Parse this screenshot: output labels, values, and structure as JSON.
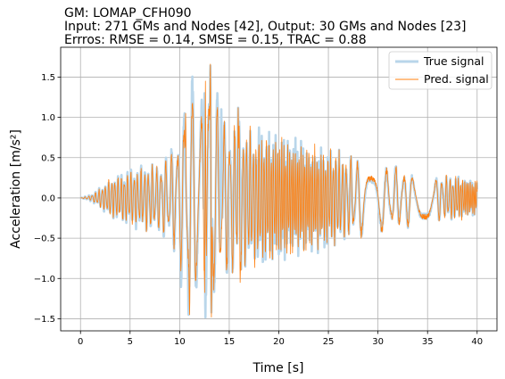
{
  "chart_data": {
    "type": "line",
    "title_lines": [
      "GM: LOMAP_CFH090",
      "Input: 271 GMs and Nodes [42], Output: 30 GMs and Nodes [23]",
      "Errros: RMSE = 0.14, SMSE = 0.15, TRAC = 0.88"
    ],
    "xlabel": "Time [s]",
    "ylabel": "Acceleration [m/s²]",
    "xlim": [
      -2,
      42
    ],
    "ylim": [
      -1.65,
      1.87
    ],
    "xticks": [
      0,
      5,
      10,
      15,
      20,
      25,
      30,
      35,
      40
    ],
    "xtick_labels": [
      "0",
      "5",
      "10",
      "15",
      "20",
      "25",
      "30",
      "35",
      "40"
    ],
    "yticks": [
      -1.5,
      -1.0,
      -0.5,
      0.0,
      0.5,
      1.0,
      1.5
    ],
    "ytick_labels": [
      "−1.5",
      "−1.0",
      "−0.5",
      "0.0",
      "0.5",
      "1.0",
      "1.5"
    ],
    "grid": true,
    "legend_position": "top-right",
    "series": [
      {
        "name": "True signal",
        "color": "#b9d6ea",
        "envelope": [
          [
            0,
            0.0
          ],
          [
            1,
            0.04
          ],
          [
            2,
            0.12
          ],
          [
            3,
            0.22
          ],
          [
            4,
            0.28
          ],
          [
            5,
            0.34
          ],
          [
            6,
            0.38
          ],
          [
            7,
            0.4
          ],
          [
            8,
            0.43
          ],
          [
            9,
            0.55
          ],
          [
            10,
            0.9
          ],
          [
            11,
            1.45
          ],
          [
            12,
            1.35
          ],
          [
            13,
            1.5
          ],
          [
            14,
            1.1
          ],
          [
            15,
            0.95
          ],
          [
            16,
            0.95
          ],
          [
            17,
            0.82
          ],
          [
            18,
            0.78
          ],
          [
            19,
            0.75
          ],
          [
            20,
            0.74
          ],
          [
            21,
            0.7
          ],
          [
            22,
            0.66
          ],
          [
            23,
            0.62
          ],
          [
            24,
            0.6
          ],
          [
            25,
            0.57
          ],
          [
            26,
            0.53
          ],
          [
            27,
            0.5
          ],
          [
            28,
            0.46
          ],
          [
            29,
            0.43
          ],
          [
            30,
            0.4
          ],
          [
            31,
            0.38
          ],
          [
            32,
            0.36
          ],
          [
            33,
            0.34
          ],
          [
            34,
            0.31
          ],
          [
            35,
            0.3
          ],
          [
            36,
            0.28
          ],
          [
            37,
            0.26
          ],
          [
            38,
            0.25
          ],
          [
            39,
            0.23
          ],
          [
            40,
            0.21
          ]
        ]
      },
      {
        "name": "Pred. signal",
        "color": "#ff7f0e",
        "envelope": [
          [
            0,
            0.0
          ],
          [
            1,
            0.03
          ],
          [
            2,
            0.12
          ],
          [
            3,
            0.24
          ],
          [
            4,
            0.28
          ],
          [
            5,
            0.33
          ],
          [
            6,
            0.36
          ],
          [
            7,
            0.4
          ],
          [
            8,
            0.42
          ],
          [
            9,
            0.5
          ],
          [
            10,
            0.8
          ],
          [
            11,
            1.2
          ],
          [
            12,
            1.25
          ],
          [
            13,
            1.55
          ],
          [
            14,
            1.05
          ],
          [
            15,
            0.9
          ],
          [
            16,
            0.92
          ],
          [
            17,
            0.8
          ],
          [
            18,
            0.77
          ],
          [
            19,
            0.76
          ],
          [
            20,
            0.74
          ],
          [
            21,
            0.69
          ],
          [
            22,
            0.66
          ],
          [
            23,
            0.62
          ],
          [
            24,
            0.6
          ],
          [
            25,
            0.57
          ],
          [
            26,
            0.54
          ],
          [
            27,
            0.5
          ],
          [
            28,
            0.46
          ],
          [
            29,
            0.43
          ],
          [
            30,
            0.41
          ],
          [
            31,
            0.39
          ],
          [
            32,
            0.37
          ],
          [
            33,
            0.34
          ],
          [
            34,
            0.32
          ],
          [
            35,
            0.3
          ],
          [
            36,
            0.28
          ],
          [
            37,
            0.27
          ],
          [
            38,
            0.26
          ],
          [
            39,
            0.24
          ],
          [
            40,
            0.21
          ]
        ],
        "peaks": [
          {
            "t": 10.6,
            "value": 1.05
          },
          {
            "t": 11.0,
            "value": -1.45
          },
          {
            "t": 12.6,
            "value": 1.45
          },
          {
            "t": 13.1,
            "value": 1.72
          },
          {
            "t": 13.2,
            "value": -1.48
          },
          {
            "t": 15.9,
            "value": 1.12
          },
          {
            "t": 16.1,
            "value": -1.05
          }
        ]
      }
    ]
  }
}
